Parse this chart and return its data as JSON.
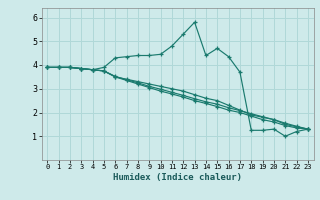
{
  "title": "",
  "xlabel": "Humidex (Indice chaleur)",
  "background_color": "#ceeaea",
  "grid_color": "#b0d8d8",
  "line_color": "#1a7a6e",
  "xlim": [
    -0.5,
    23.5
  ],
  "ylim": [
    0.0,
    6.4
  ],
  "xticks": [
    0,
    1,
    2,
    3,
    4,
    5,
    6,
    7,
    8,
    9,
    10,
    11,
    12,
    13,
    14,
    15,
    16,
    17,
    18,
    19,
    20,
    21,
    22,
    23
  ],
  "yticks": [
    1,
    2,
    3,
    4,
    5,
    6
  ],
  "series": [
    {
      "x": [
        0,
        1,
        2,
        3,
        4,
        5,
        6,
        7,
        8,
        9,
        10,
        11,
        12,
        13,
        14,
        15,
        16,
        17,
        18,
        19,
        20,
        21,
        22,
        23
      ],
      "y": [
        3.9,
        3.9,
        3.9,
        3.85,
        3.8,
        3.9,
        4.3,
        4.35,
        4.4,
        4.4,
        4.45,
        4.8,
        5.3,
        5.8,
        4.4,
        4.7,
        4.35,
        3.7,
        1.25,
        1.25,
        1.3,
        1.0,
        1.2,
        1.3
      ]
    },
    {
      "x": [
        0,
        1,
        2,
        3,
        4,
        5,
        6,
        7,
        8,
        9,
        10,
        11,
        12,
        13,
        14,
        15,
        16,
        17,
        18,
        19,
        20,
        21,
        22,
        23
      ],
      "y": [
        3.9,
        3.9,
        3.9,
        3.85,
        3.8,
        3.75,
        3.5,
        3.4,
        3.3,
        3.2,
        3.1,
        3.0,
        2.9,
        2.75,
        2.6,
        2.5,
        2.3,
        2.1,
        1.9,
        1.8,
        1.7,
        1.5,
        1.4,
        1.3
      ]
    },
    {
      "x": [
        0,
        1,
        2,
        3,
        4,
        5,
        6,
        7,
        8,
        9,
        10,
        11,
        12,
        13,
        14,
        15,
        16,
        17,
        18,
        19,
        20,
        21,
        22,
        23
      ],
      "y": [
        3.9,
        3.9,
        3.9,
        3.85,
        3.8,
        3.75,
        3.5,
        3.35,
        3.2,
        3.05,
        2.9,
        2.78,
        2.65,
        2.5,
        2.38,
        2.25,
        2.1,
        2.0,
        1.85,
        1.7,
        1.6,
        1.45,
        1.35,
        1.3
      ]
    },
    {
      "x": [
        0,
        1,
        2,
        3,
        4,
        5,
        6,
        7,
        8,
        9,
        10,
        11,
        12,
        13,
        14,
        15,
        16,
        17,
        18,
        19,
        20,
        21,
        22,
        23
      ],
      "y": [
        3.9,
        3.9,
        3.9,
        3.85,
        3.8,
        3.75,
        3.52,
        3.38,
        3.25,
        3.1,
        2.98,
        2.85,
        2.72,
        2.58,
        2.45,
        2.35,
        2.2,
        2.08,
        1.95,
        1.82,
        1.7,
        1.55,
        1.42,
        1.3
      ]
    }
  ]
}
